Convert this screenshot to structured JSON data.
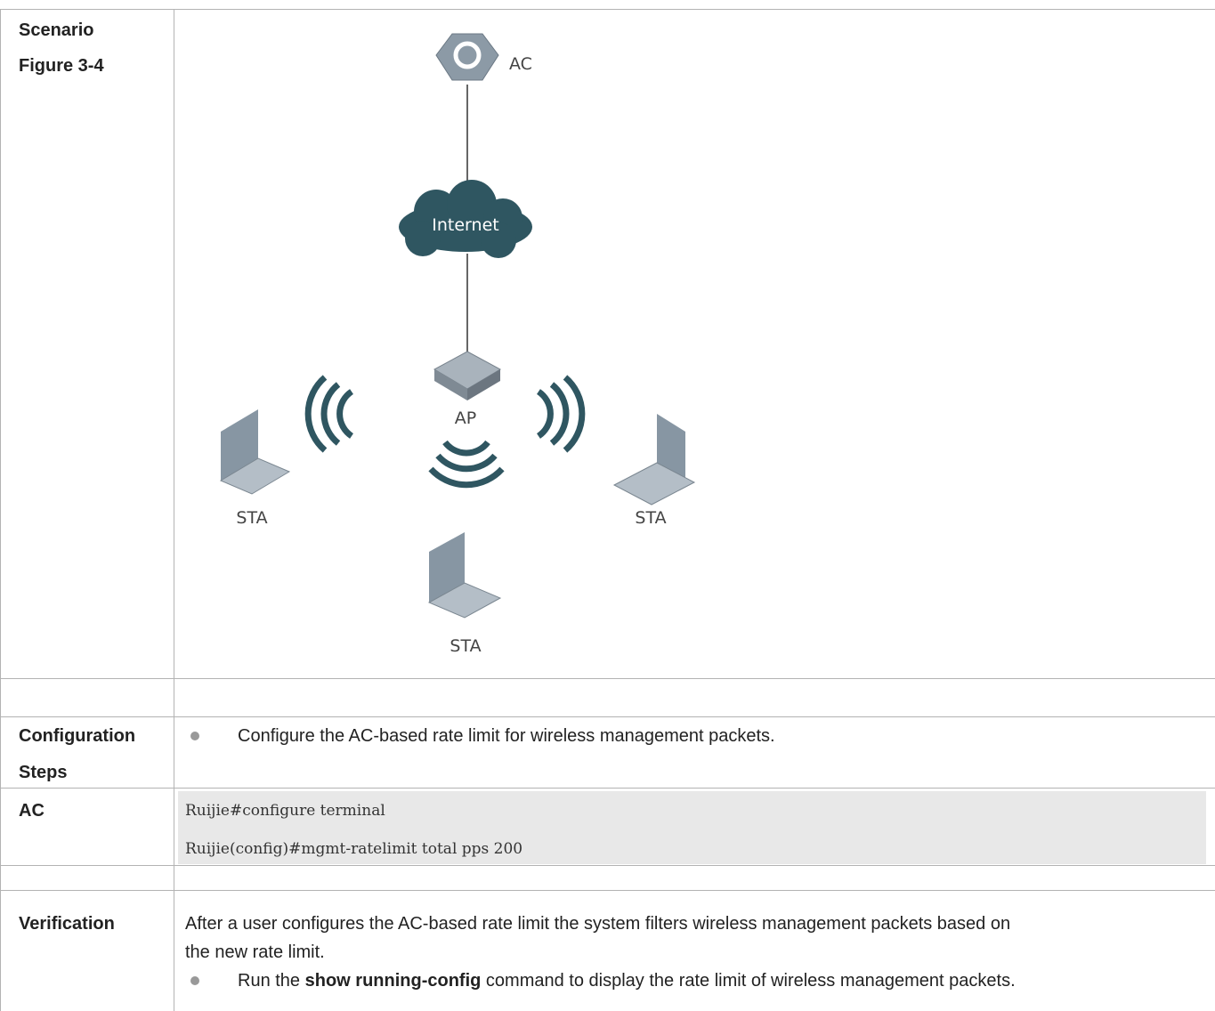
{
  "table": {
    "rows": {
      "scenario": {
        "label": [
          "Scenario",
          "Figure 3-4"
        ],
        "figure": {
          "nodes": [
            "AC",
            "Internet",
            "AP",
            "STA",
            "STA",
            "STA"
          ]
        }
      },
      "configuration": {
        "label": [
          "Configuration",
          "Steps"
        ],
        "bullet": "Configure the AC-based rate limit for wireless management packets."
      },
      "ac": {
        "label": "AC",
        "code": [
          "Ruijie#configure terminal",
          "Ruijie(config)#mgmt-ratelimit total pps 200"
        ]
      },
      "verification": {
        "label": "Verification",
        "text": [
          "After a user configures the AC-based rate limit the system filters wireless management packets based on",
          "the new rate limit."
        ],
        "bullet": {
          "before": "Run the ",
          "command": "show running-config",
          "after": " command to display the rate limit of wireless management packets."
        }
      }
    }
  }
}
